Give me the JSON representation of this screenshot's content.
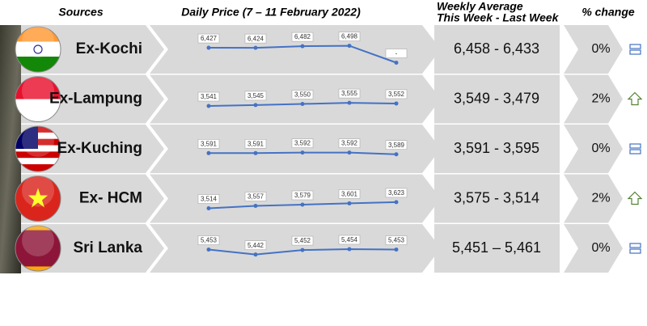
{
  "header": {
    "sources": "Sources",
    "daily_price": "Daily Price (7 – 11 February 2022)",
    "weekly_average": [
      "Weekly Average",
      "This Week - Last Week"
    ],
    "pct_change": "% change"
  },
  "rows": [
    {
      "source": "Ex-Kochi",
      "prices": {
        "values": [
          6427,
          6424,
          6482,
          6498,
          5900
        ],
        "value_labels": [
          "6,427",
          "6,424",
          "6,482",
          "6,498",
          "-"
        ],
        "ylim": [
          5800,
          6600
        ]
      },
      "weekly": "6,458 - 6,433",
      "change": "0%"
    },
    {
      "source": "Ex-Lampung",
      "prices": {
        "values": [
          3541,
          3545,
          3550,
          3555,
          3552
        ],
        "value_labels": [
          "3,541",
          "3,545",
          "3,550",
          "3,555",
          "3,552"
        ],
        "ylim": [
          3500,
          3600
        ]
      },
      "weekly": "3,549 - 3,479",
      "change": "2%"
    },
    {
      "source": "Ex-Kuching",
      "prices": {
        "values": [
          3591,
          3591,
          3592,
          3592,
          3589
        ],
        "value_labels": [
          "3,591",
          "3,591",
          "3,592",
          "3,592",
          "3,589"
        ],
        "ylim": [
          3570,
          3610
        ]
      },
      "weekly": "3,591 - 3,595",
      "change": "0%"
    },
    {
      "source": "Ex- HCM",
      "prices": {
        "values": [
          3514,
          3557,
          3579,
          3601,
          3623
        ],
        "value_labels": [
          "3,514",
          "3,557",
          "3,579",
          "3,601",
          "3,623"
        ],
        "ylim": [
          3400,
          3800
        ]
      },
      "weekly": "3,575 - 3,514",
      "change": "2%"
    },
    {
      "source": "Sri Lanka",
      "prices": {
        "values": [
          5453,
          5442,
          5452,
          5454,
          5453
        ],
        "value_labels": [
          "5,453",
          "5,442",
          "5,452",
          "5,454",
          "5,453"
        ],
        "ylim": [
          5420,
          5470
        ]
      },
      "weekly": "5,451 – 5,461",
      "change": "0%"
    }
  ]
}
